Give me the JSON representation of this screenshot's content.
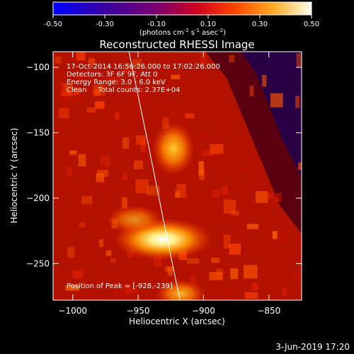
{
  "colorbar": {
    "ticks": [
      "-0.50",
      "-0.30",
      "-0.10",
      "0.10",
      "0.30",
      "0.50"
    ],
    "unit_text": "(photons cm",
    "unit_sup1": "-2",
    "unit_mid": " s",
    "unit_sup2": "-1",
    "unit_mid2": " asec",
    "unit_sup3": "-2",
    "unit_end": ")"
  },
  "chart_data": {
    "type": "heatmap",
    "title": "Reconstructed RHESSI Image",
    "xlabel": "Heliocentric X (arcsec)",
    "ylabel": "Heliocentric Y (arcsec)",
    "xlim": [
      -1015,
      -825
    ],
    "ylim": [
      -278,
      -88
    ],
    "x_ticks": [
      -1000,
      -950,
      -900,
      -850
    ],
    "y_ticks": [
      -100,
      -150,
      -200,
      -250
    ],
    "x_tick_labels": [
      "−1000",
      "−950",
      "−900",
      "−850"
    ],
    "y_tick_labels": [
      "−100",
      "−150",
      "−200",
      "−250"
    ],
    "colorscale": [
      "#0000ff",
      "#4b0082",
      "#800080",
      "#cc0033",
      "#ff3300",
      "#ff8800",
      "#ffcc44",
      "#ffffe0"
    ],
    "zlim": [
      -0.5,
      0.5
    ],
    "annotations": [
      "17-Oct-2014 16:56:26.000 to 17:02:26.000",
      "Detectors: 3F 6F 9F, Att 0",
      "Energy Range: 3.0 - 6.0 keV",
      "Clean     Total counts: 2.37E+04"
    ],
    "peak_label": "Position of Peak = [-928,-239]",
    "peak": [
      -928,
      -239
    ],
    "limb_line": [
      [
        -957,
        -88
      ],
      [
        -942,
        -160
      ],
      [
        -930,
        -220
      ],
      [
        -918,
        -278
      ]
    ]
  },
  "footer": {
    "date": "3-Jun-2019 17:20"
  }
}
